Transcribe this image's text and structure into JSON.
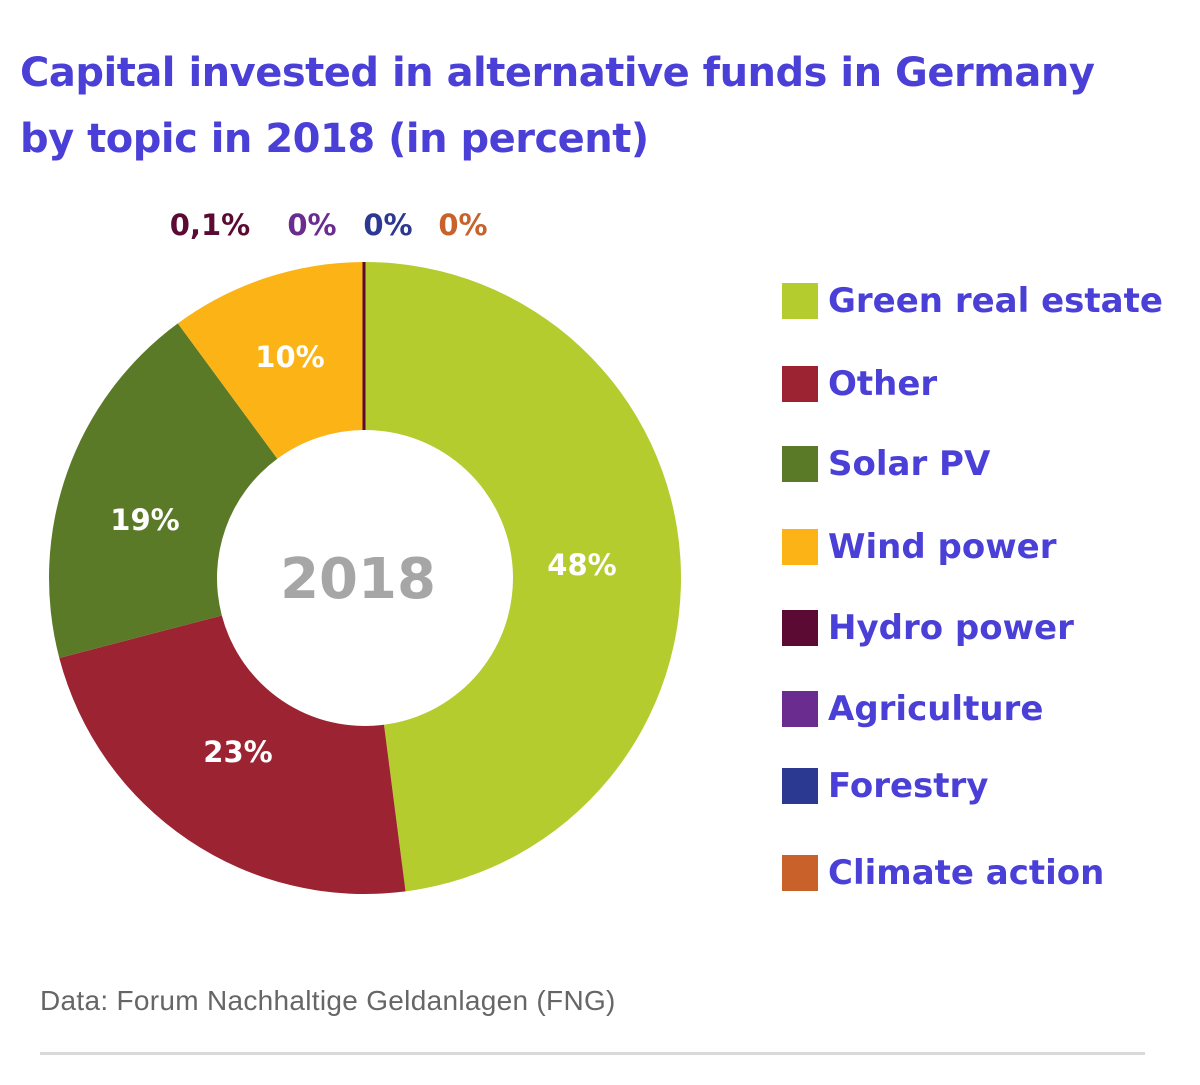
{
  "chart_data": {
    "type": "pie",
    "variant": "donut",
    "title_line1": "Capital invested in alternative funds in Germany",
    "title_line2": "by topic in 2018 (in percent)",
    "center_label": "2018",
    "unit": "percent",
    "series": [
      {
        "name": "Green real estate",
        "value": 48,
        "label": "48%",
        "color": "#b5cc2e"
      },
      {
        "name": "Other",
        "value": 23,
        "label": "23%",
        "color": "#9c2331"
      },
      {
        "name": "Solar PV",
        "value": 19,
        "label": "19%",
        "color": "#5a7a27"
      },
      {
        "name": "Wind power",
        "value": 10,
        "label": "10%",
        "color": "#fbb316"
      },
      {
        "name": "Hydro power",
        "value": 0.1,
        "label": "0,1%",
        "color": "#5b0a33"
      },
      {
        "name": "Agriculture",
        "value": 0,
        "label": "0%",
        "color": "#6a2d8f"
      },
      {
        "name": "Forestry",
        "value": 0,
        "label": "0%",
        "color": "#2b3990"
      },
      {
        "name": "Climate action",
        "value": 0,
        "label": "0%",
        "color": "#c8622a"
      }
    ],
    "legend_position": "right"
  },
  "source_text": "Data: Forum Nachhaltige Geldanlagen (FNG)",
  "colors": {
    "title": "#4a3fd6",
    "legend_text": "#4a3fd6",
    "center_label": "#a6a6a6",
    "slice_label": "#ffffff",
    "source": "#666666"
  }
}
